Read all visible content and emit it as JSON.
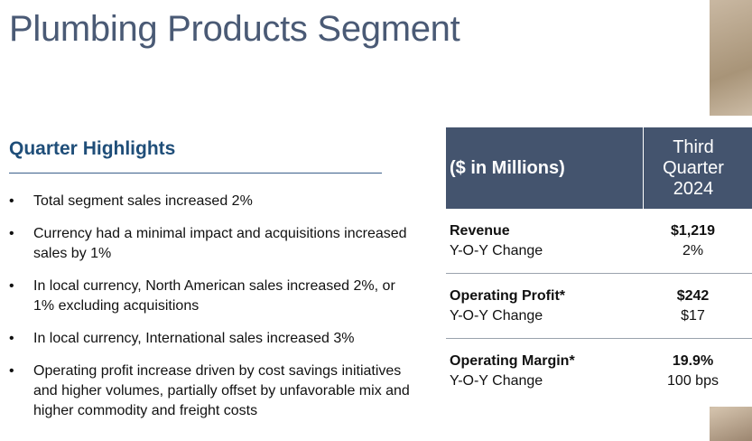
{
  "title": "Plumbing Products Segment",
  "highlights": {
    "heading": "Quarter Highlights",
    "bullet_glyph": "•",
    "items": [
      "Total segment sales increased 2%",
      "Currency had a minimal impact and acquisitions increased sales by 1%",
      "In local currency, North American sales increased 2%, or 1% excluding acquisitions",
      "In local currency, International sales increased 3%",
      "Operating profit increase driven by cost savings initiatives and higher volumes, partially offset by unfavorable mix and higher commodity and freight costs"
    ]
  },
  "table": {
    "header_label": "($ in Millions)",
    "period_line1": "Third",
    "period_line2": "Quarter",
    "period_line3": "2024",
    "rows": [
      {
        "label": "Revenue",
        "value": "$1,219",
        "sub_label": "Y-O-Y Change",
        "sub_value": "2%"
      },
      {
        "label": "Operating Profit*",
        "value": "$242",
        "sub_label": "Y-O-Y Change",
        "sub_value": "$17"
      },
      {
        "label": "Operating Margin*",
        "value": "19.9%",
        "sub_label": "Y-O-Y Change",
        "sub_value": "100 bps"
      }
    ]
  },
  "colors": {
    "title": "#4a5a75",
    "heading": "#1f4e79",
    "table_header_bg": "#44546e"
  }
}
